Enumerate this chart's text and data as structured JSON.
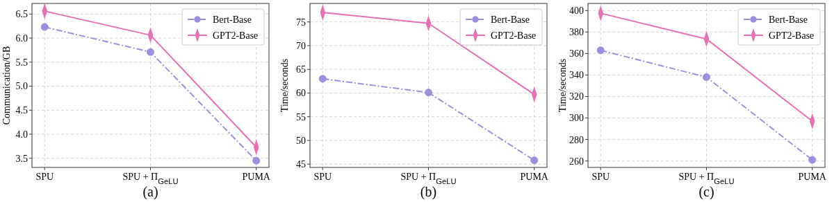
{
  "chart_data": [
    {
      "type": "line",
      "xlabel": "(a)",
      "ylabel": "Communication/GB",
      "categories": [
        "SPU",
        "SPU + Π$_{GeLU}$",
        "PUMA"
      ],
      "ylim": [
        3.31,
        6.72
      ],
      "yticks": [
        {
          "value": 3.5,
          "label": "3.5"
        },
        {
          "value": 4,
          "label": "4.0"
        },
        {
          "value": 4.5,
          "label": "4.5"
        },
        {
          "value": 5,
          "label": "5.0"
        },
        {
          "value": 5.5,
          "label": "5.5"
        },
        {
          "value": 6,
          "label": "6.0"
        },
        {
          "value": 6.5,
          "label": "6.5"
        }
      ],
      "grid": true,
      "legend": "top right",
      "series": [
        {
          "name": "Bert-Base",
          "color": "#9b8fe0",
          "marker": "circle",
          "line_style": "dashed",
          "values": [
            6.23,
            5.71,
            3.45
          ]
        },
        {
          "name": "GPT2-Base",
          "color": "#e86fb3",
          "marker": "diamond",
          "line_style": "solid",
          "values": [
            6.56,
            6.06,
            3.73
          ]
        }
      ]
    },
    {
      "type": "line",
      "xlabel": "(b)",
      "ylabel": "Time/seconds",
      "categories": [
        "SPU",
        "SPU + Π$_{GeLU}$",
        "PUMA"
      ],
      "ylim": [
        44.3,
        78.9
      ],
      "yticks": [
        45,
        50,
        55,
        60,
        65,
        70,
        75
      ],
      "grid": true,
      "legend": "top right",
      "series": [
        {
          "name": "Bert-Base",
          "color": "#9b8fe0",
          "marker": "circle",
          "line_style": "dashed",
          "values": [
            63,
            60.1,
            45.8
          ]
        },
        {
          "name": "GPT2-Base",
          "color": "#e86fb3",
          "marker": "diamond",
          "line_style": "solid",
          "values": [
            77,
            74.7,
            59.7
          ]
        }
      ]
    },
    {
      "type": "line",
      "xlabel": "(c)",
      "ylabel": "Time/seconds",
      "categories": [
        "SPU",
        "SPU + Π$_{GeLU}$",
        "PUMA"
      ],
      "ylim": [
        254,
        406.6
      ],
      "yticks": [
        260,
        280,
        300,
        320,
        340,
        360,
        380,
        400
      ],
      "grid": true,
      "legend": "top right",
      "series": [
        {
          "name": "Bert-Base",
          "color": "#9b8fe0",
          "marker": "circle",
          "line_style": "dashed",
          "values": [
            363,
            338,
            261
          ]
        },
        {
          "name": "GPT2-Base",
          "color": "#e86fb3",
          "marker": "diamond",
          "line_style": "solid",
          "values": [
            397.5,
            373.5,
            297
          ]
        }
      ]
    }
  ]
}
